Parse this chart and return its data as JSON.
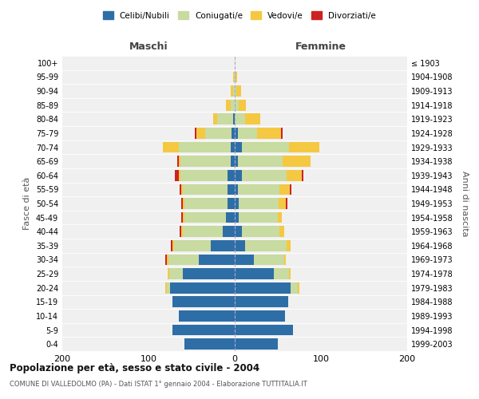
{
  "age_groups": [
    "0-4",
    "5-9",
    "10-14",
    "15-19",
    "20-24",
    "25-29",
    "30-34",
    "35-39",
    "40-44",
    "45-49",
    "50-54",
    "55-59",
    "60-64",
    "65-69",
    "70-74",
    "75-79",
    "80-84",
    "85-89",
    "90-94",
    "95-99",
    "100+"
  ],
  "birth_years": [
    "1999-2003",
    "1994-1998",
    "1989-1993",
    "1984-1988",
    "1979-1983",
    "1974-1978",
    "1969-1973",
    "1964-1968",
    "1959-1963",
    "1954-1958",
    "1949-1953",
    "1944-1948",
    "1939-1943",
    "1934-1938",
    "1929-1933",
    "1924-1928",
    "1919-1923",
    "1914-1918",
    "1909-1913",
    "1904-1908",
    "≤ 1903"
  ],
  "male": {
    "celibi": [
      58,
      72,
      65,
      72,
      75,
      60,
      42,
      28,
      14,
      10,
      8,
      8,
      8,
      5,
      5,
      4,
      2,
      0,
      0,
      0,
      0
    ],
    "coniugati": [
      0,
      0,
      0,
      0,
      4,
      16,
      35,
      42,
      46,
      48,
      50,
      52,
      55,
      58,
      60,
      30,
      18,
      5,
      2,
      1,
      0
    ],
    "vedovi": [
      0,
      0,
      0,
      0,
      2,
      2,
      2,
      2,
      2,
      2,
      2,
      2,
      2,
      2,
      18,
      10,
      5,
      5,
      3,
      1,
      0
    ],
    "divorziati": [
      0,
      0,
      0,
      0,
      0,
      0,
      2,
      2,
      2,
      2,
      2,
      2,
      4,
      2,
      0,
      2,
      0,
      0,
      0,
      0,
      0
    ]
  },
  "female": {
    "nubili": [
      50,
      68,
      58,
      62,
      65,
      45,
      22,
      12,
      8,
      5,
      5,
      4,
      8,
      4,
      8,
      4,
      0,
      0,
      0,
      0,
      0
    ],
    "coniugate": [
      0,
      0,
      0,
      0,
      8,
      18,
      35,
      48,
      44,
      45,
      46,
      48,
      52,
      52,
      55,
      22,
      12,
      5,
      2,
      1,
      0
    ],
    "vedove": [
      0,
      0,
      0,
      0,
      2,
      2,
      2,
      5,
      5,
      5,
      8,
      12,
      18,
      32,
      35,
      28,
      18,
      8,
      5,
      2,
      0
    ],
    "divorziate": [
      0,
      0,
      0,
      0,
      0,
      0,
      0,
      0,
      0,
      0,
      2,
      2,
      2,
      0,
      0,
      2,
      0,
      0,
      0,
      0,
      0
    ]
  },
  "colors": {
    "celibi": "#2e6ea6",
    "coniugati": "#c8dba0",
    "vedovi": "#f5c842",
    "divorziati": "#cc2222"
  },
  "title": "Popolazione per età, sesso e stato civile - 2004",
  "subtitle": "COMUNE DI VALLEDOLMO (PA) - Dati ISTAT 1° gennaio 2004 - Elaborazione TUTTITALIA.IT",
  "xlabel_left": "Maschi",
  "xlabel_right": "Femmine",
  "ylabel_left": "Fasce di età",
  "ylabel_right": "Anni di nascita",
  "xlim": 200,
  "bg_color": "#f0f0f0",
  "plot_bg": "#ffffff",
  "bar_height": 0.78
}
